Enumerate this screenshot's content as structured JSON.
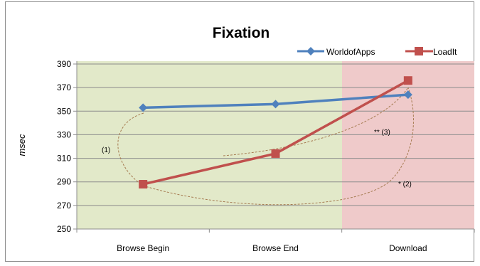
{
  "chart_data": {
    "type": "line",
    "title": "Fixation",
    "ylabel": "msec",
    "xlabel": "",
    "categories": [
      "Browse Begin",
      "Browse End",
      "Download"
    ],
    "ylim": [
      250,
      390
    ],
    "yticks": [
      250,
      270,
      290,
      310,
      330,
      350,
      370,
      390
    ],
    "grid": true,
    "legend_position": "top-right",
    "series": [
      {
        "name": "WorldofApps",
        "values": [
          353,
          356,
          364
        ],
        "color": "#4f81bd",
        "marker": "diamond"
      },
      {
        "name": "LoadIt",
        "values": [
          288,
          314,
          376
        ],
        "color": "#c0504d",
        "marker": "square"
      }
    ],
    "background_regions": [
      {
        "from": "Browse Begin",
        "to": "Browse End",
        "color": "#e2e9c9"
      },
      {
        "from": "Download",
        "to": "Download",
        "color": "#efcaca"
      }
    ],
    "annotations": [
      "(1)",
      "** (3)",
      "* (2)"
    ]
  }
}
